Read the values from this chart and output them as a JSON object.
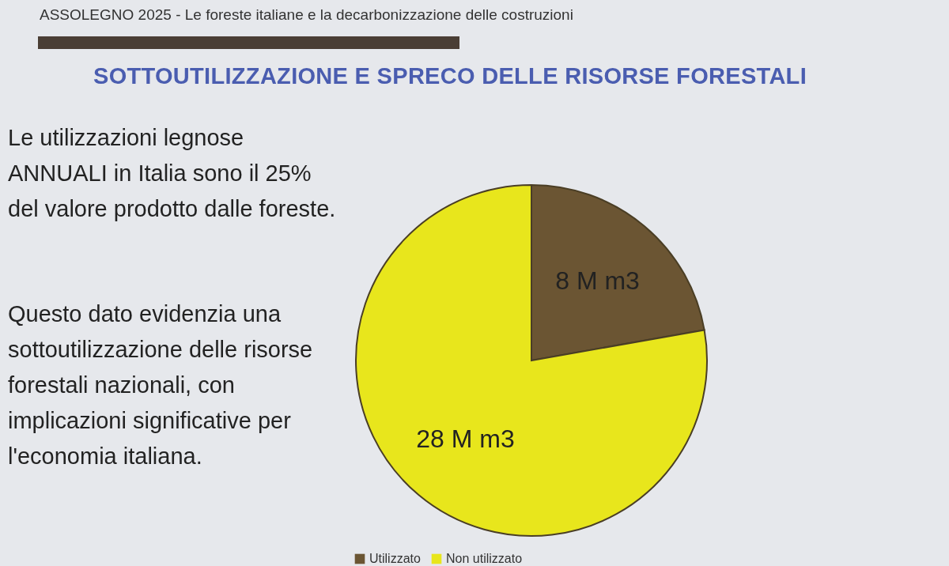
{
  "chart_data": {
    "type": "pie",
    "subtitle": "ASSOLEGNO 2025 - Le foreste italiane e la decarbonizzazione delle costruzioni",
    "title": "SOTTOUTILIZZAZIONE E SPRECO DELLE RISORSE FORESTALI",
    "annotations": [
      "Le utilizzazioni legnose ANNUALI in Italia sono il 25% del valore prodotto dalle foreste.",
      "Questo dato evidenzia una sottoutilizzazione delle risorse forestali nazionali, con implicazioni significative per l'economia italiana."
    ],
    "categories": [
      "Utilizzato",
      "Non utilizzato"
    ],
    "values": [
      8,
      28
    ],
    "colors": [
      "#6b5533",
      "#e8e61c"
    ],
    "value_labels": [
      "8 M m3",
      "28 M m3"
    ],
    "legend": "bottom"
  }
}
